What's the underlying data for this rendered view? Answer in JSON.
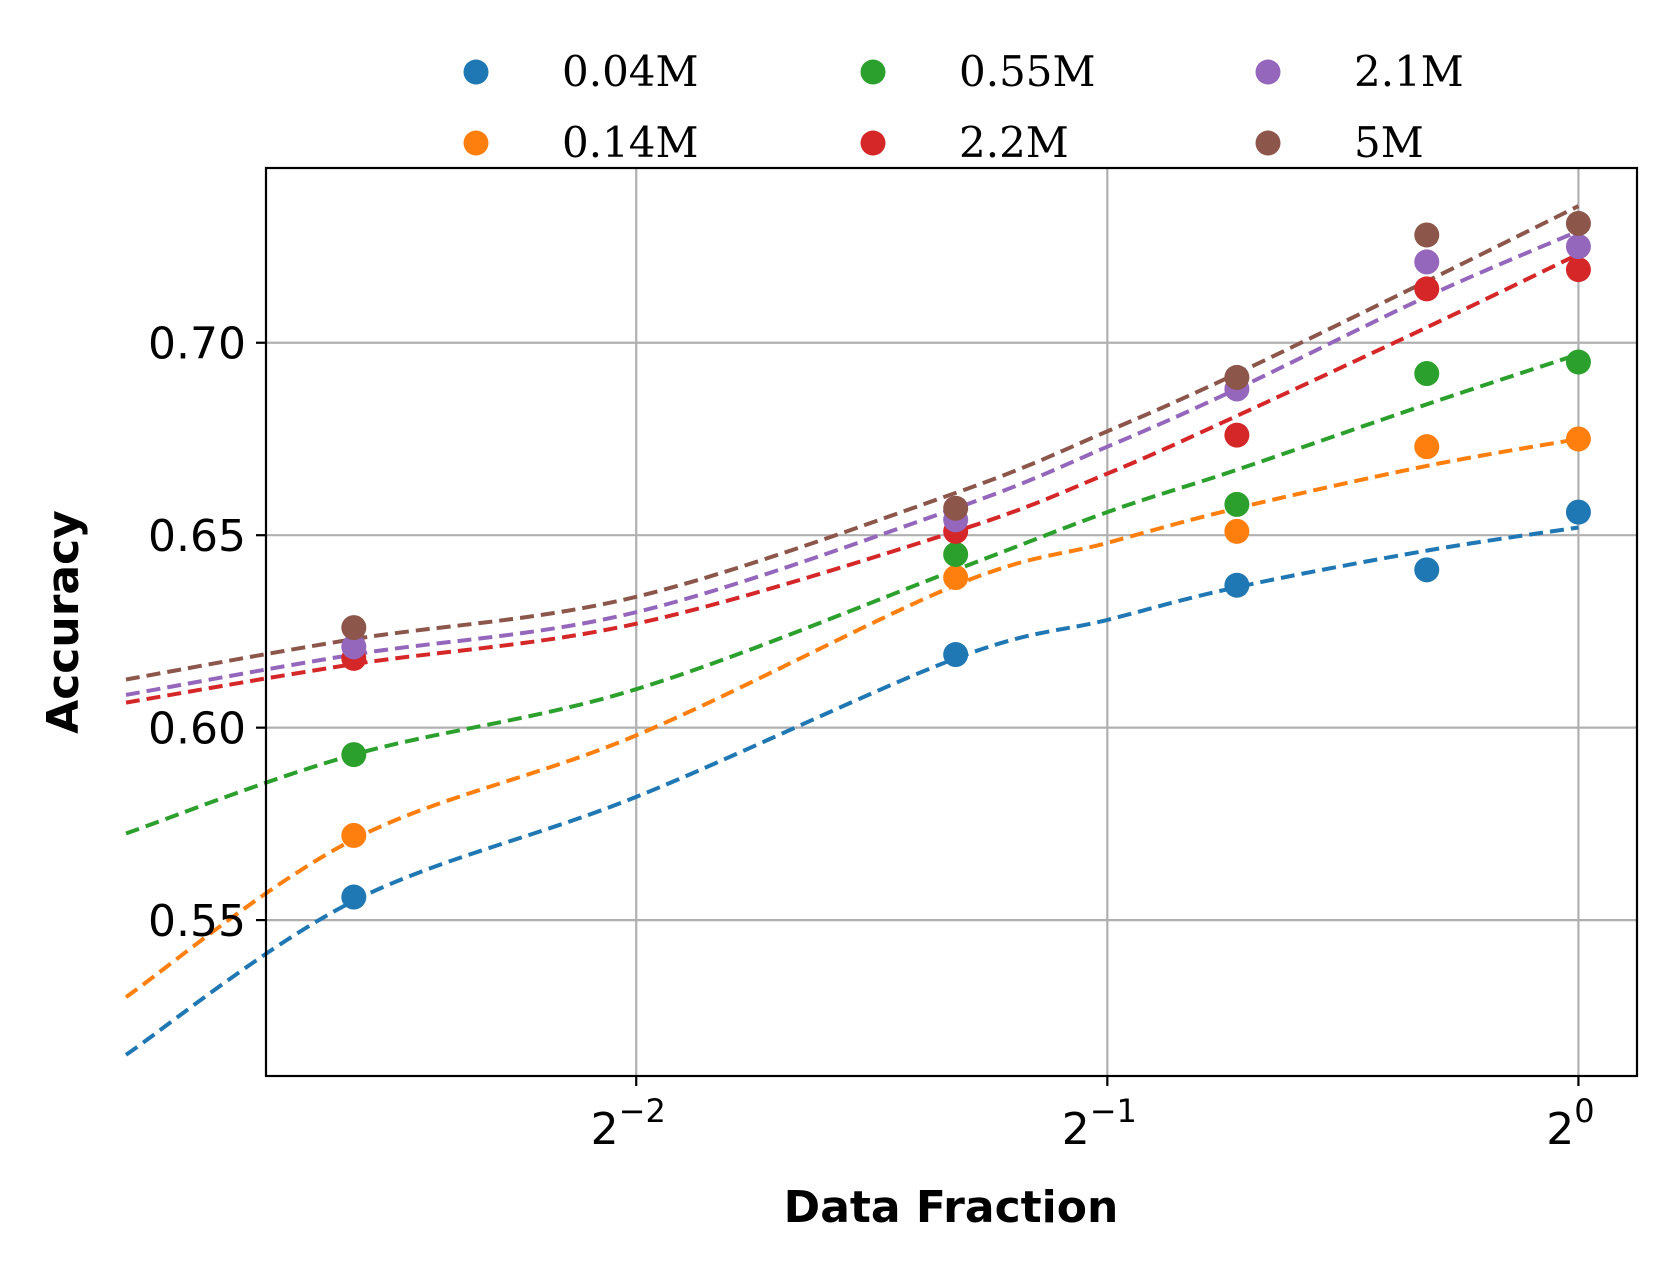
{
  "chart_data": {
    "type": "scatter",
    "title": "",
    "xlabel": "Data Fraction",
    "ylabel": "Accuracy",
    "xscale": "log2",
    "xlim": [
      0.145,
      1.09
    ],
    "ylim": [
      0.5095,
      0.7454
    ],
    "grid": true,
    "legend_position": "top (outside, 3 columns)",
    "x_ticks": [
      {
        "value": 0.25,
        "base": "2",
        "exp": "−2"
      },
      {
        "value": 0.5,
        "base": "2",
        "exp": "−1"
      },
      {
        "value": 1.0,
        "base": "2",
        "exp": "0"
      }
    ],
    "y_ticks": [
      {
        "value": 0.55,
        "label": "0.55"
      },
      {
        "value": 0.6,
        "label": "0.60"
      },
      {
        "value": 0.65,
        "label": "0.65"
      },
      {
        "value": 0.7,
        "label": "0.70"
      }
    ],
    "x": [
      0.165,
      0.4,
      0.605,
      0.8,
      1.0
    ],
    "fit_x_range": [
      0.118,
      1.0
    ],
    "series": [
      {
        "name": "0.04M",
        "color": "#1f77b4",
        "values": [
          0.556,
          0.619,
          0.637,
          0.641,
          0.656
        ],
        "fit": [
          [
            0.118,
            0.515
          ],
          [
            0.165,
            0.555
          ],
          [
            0.25,
            0.582
          ],
          [
            0.4,
            0.618
          ],
          [
            0.5,
            0.628
          ],
          [
            0.605,
            0.6365
          ],
          [
            0.8,
            0.646
          ],
          [
            1.0,
            0.652
          ]
        ]
      },
      {
        "name": "0.14M",
        "color": "#ff7f0e",
        "values": [
          0.572,
          0.639,
          0.651,
          0.673,
          0.675
        ],
        "fit": [
          [
            0.118,
            0.53
          ],
          [
            0.165,
            0.571
          ],
          [
            0.25,
            0.598
          ],
          [
            0.4,
            0.637
          ],
          [
            0.5,
            0.648
          ],
          [
            0.605,
            0.657
          ],
          [
            0.8,
            0.668
          ],
          [
            1.0,
            0.675
          ]
        ]
      },
      {
        "name": "0.55M",
        "color": "#2ca02c",
        "values": [
          0.593,
          0.645,
          0.658,
          0.692,
          0.695
        ],
        "fit": [
          [
            0.118,
            0.5725
          ],
          [
            0.165,
            0.593
          ],
          [
            0.25,
            0.61
          ],
          [
            0.4,
            0.641
          ],
          [
            0.5,
            0.656
          ],
          [
            0.605,
            0.667
          ],
          [
            0.8,
            0.684
          ],
          [
            1.0,
            0.697
          ]
        ]
      },
      {
        "name": "2.2M",
        "color": "#d62728",
        "values": [
          0.618,
          0.651,
          0.676,
          0.714,
          0.719
        ],
        "fit": [
          [
            0.118,
            0.6065
          ],
          [
            0.165,
            0.6165
          ],
          [
            0.25,
            0.627
          ],
          [
            0.4,
            0.651
          ],
          [
            0.5,
            0.666
          ],
          [
            0.605,
            0.681
          ],
          [
            0.8,
            0.704
          ],
          [
            1.0,
            0.723
          ]
        ]
      },
      {
        "name": "2.1M",
        "color": "#9467bd",
        "values": [
          0.621,
          0.654,
          0.688,
          0.721,
          0.725
        ],
        "fit": [
          [
            0.118,
            0.6085
          ],
          [
            0.165,
            0.619
          ],
          [
            0.25,
            0.63
          ],
          [
            0.4,
            0.657
          ],
          [
            0.5,
            0.673
          ],
          [
            0.605,
            0.688
          ],
          [
            0.8,
            0.712
          ],
          [
            1.0,
            0.729
          ]
        ]
      },
      {
        "name": "5M",
        "color": "#8c564b",
        "values": [
          0.626,
          0.657,
          0.691,
          0.728,
          0.731
        ],
        "fit": [
          [
            0.118,
            0.6125
          ],
          [
            0.165,
            0.623
          ],
          [
            0.25,
            0.634
          ],
          [
            0.4,
            0.661
          ],
          [
            0.5,
            0.677
          ],
          [
            0.605,
            0.692
          ],
          [
            0.8,
            0.716
          ],
          [
            1.0,
            0.7355
          ]
        ]
      }
    ],
    "legend_order": [
      "0.04M",
      "0.55M",
      "2.1M",
      "0.14M",
      "2.2M",
      "5M"
    ]
  }
}
